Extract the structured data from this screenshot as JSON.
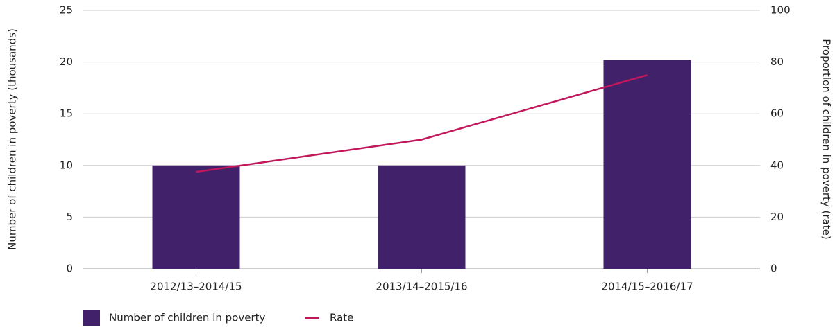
{
  "chart_data": {
    "type": "bar",
    "categories": [
      "2012/13–2014/15",
      "2013/14–2015/16",
      "2014/15–2016/17"
    ],
    "series": [
      {
        "name": "Number of children in poverty",
        "color": "#40216a",
        "type": "bar",
        "values": [
          10,
          10,
          20.2
        ]
      },
      {
        "name": "Rate",
        "color": "#c2185b",
        "type": "line",
        "axis": "y2",
        "values": [
          37.5,
          50,
          75
        ]
      }
    ],
    "ylabel": "Number of children in poverty (thousands)",
    "y2label": "Proportion of children in poverty (rate)",
    "ylim": [
      0,
      25
    ],
    "yticks": [
      0,
      5,
      10,
      15,
      20,
      25
    ],
    "y2lim": [
      0,
      100
    ],
    "y2ticks": [
      0,
      20,
      40,
      60,
      80,
      100
    ],
    "grid": true
  }
}
